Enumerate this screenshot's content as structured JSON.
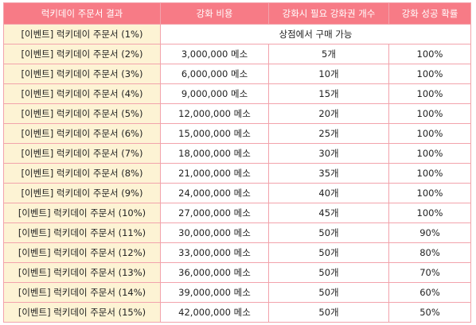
{
  "table": {
    "headers": [
      "럭키데이 주문서 결과",
      "강화 비용",
      "강화시 필요 강화권 개수",
      "강화 성공 확률"
    ],
    "shop_note": "상점에서 구매 가능",
    "rows": [
      {
        "name": "[이벤트] 럭키데이 주문서 (1%)",
        "cost": "",
        "count": "",
        "rate": ""
      },
      {
        "name": "[이벤트] 럭키데이 주문서 (2%)",
        "cost": "3,000,000 메소",
        "count": "5개",
        "rate": "100%"
      },
      {
        "name": "[이벤트] 럭키데이 주문서 (3%)",
        "cost": "6,000,000 메소",
        "count": "10개",
        "rate": "100%"
      },
      {
        "name": "[이벤트] 럭키데이 주문서 (4%)",
        "cost": "9,000,000 메소",
        "count": "15개",
        "rate": "100%"
      },
      {
        "name": "[이벤트] 럭키데이 주문서 (5%)",
        "cost": "12,000,000 메소",
        "count": "20개",
        "rate": "100%"
      },
      {
        "name": "[이벤트] 럭키데이 주문서 (6%)",
        "cost": "15,000,000 메소",
        "count": "25개",
        "rate": "100%"
      },
      {
        "name": "[이벤트] 럭키데이 주문서 (7%)",
        "cost": "18,000,000 메소",
        "count": "30개",
        "rate": "100%"
      },
      {
        "name": "[이벤트] 럭키데이 주문서 (8%)",
        "cost": "21,000,000 메소",
        "count": "35개",
        "rate": "100%"
      },
      {
        "name": "[이벤트] 럭키데이 주문서 (9%)",
        "cost": "24,000,000 메소",
        "count": "40개",
        "rate": "100%"
      },
      {
        "name": "[이벤트] 럭키데이 주문서 (10%)",
        "cost": "27,000,000 메소",
        "count": "45개",
        "rate": "100%"
      },
      {
        "name": "[이벤트] 럭키데이 주문서 (11%)",
        "cost": "30,000,000 메소",
        "count": "50개",
        "rate": "90%"
      },
      {
        "name": "[이벤트] 럭키데이 주문서 (12%)",
        "cost": "33,000,000 메소",
        "count": "50개",
        "rate": "80%"
      },
      {
        "name": "[이벤트] 럭키데이 주문서 (13%)",
        "cost": "36,000,000 메소",
        "count": "50개",
        "rate": "70%"
      },
      {
        "name": "[이벤트] 럭키데이 주문서 (14%)",
        "cost": "39,000,000 메소",
        "count": "50개",
        "rate": "60%"
      },
      {
        "name": "[이벤트] 럭키데이 주문서 (15%)",
        "cost": "42,000,000 메소",
        "count": "50개",
        "rate": "50%"
      }
    ]
  },
  "colors": {
    "header_bg": "#f77b86",
    "name_cell_bg": "#fdf3d4",
    "border": "#f2a3ac"
  }
}
